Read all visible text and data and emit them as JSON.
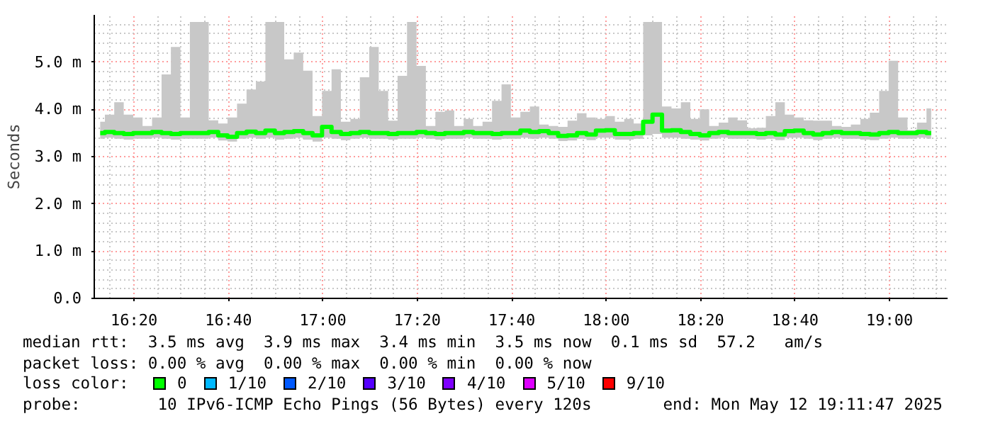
{
  "chart_data": {
    "type": "step",
    "ylabel": "Seconds",
    "x": [
      16.214,
      16.247,
      16.28,
      16.314,
      16.347,
      16.38,
      16.414,
      16.447,
      16.48,
      16.514,
      16.547,
      16.58,
      16.614,
      16.647,
      16.68,
      16.714,
      16.747,
      16.78,
      16.814,
      16.847,
      16.88,
      16.914,
      16.947,
      16.98,
      17.014,
      17.047,
      17.08,
      17.114,
      17.147,
      17.18,
      17.214,
      17.247,
      17.28,
      17.314,
      17.347,
      17.38,
      17.414,
      17.447,
      17.48,
      17.514,
      17.547,
      17.58,
      17.614,
      17.647,
      17.68,
      17.714,
      17.747,
      17.78,
      17.814,
      17.847,
      17.88,
      17.914,
      17.947,
      17.98,
      18.014,
      18.047,
      18.08,
      18.114,
      18.147,
      18.18,
      18.214,
      18.247,
      18.28,
      18.314,
      18.347,
      18.38,
      18.414,
      18.447,
      18.48,
      18.514,
      18.547,
      18.58,
      18.614,
      18.647,
      18.68,
      18.714,
      18.747,
      18.78,
      18.814,
      18.847,
      18.88,
      18.914,
      18.947,
      18.98,
      19.014,
      19.047,
      19.08,
      19.114,
      19.147
    ],
    "series": [
      {
        "name": "0",
        "color": "#00ff00",
        "values": [
          3.5,
          3.52,
          3.5,
          3.48,
          3.5,
          3.5,
          3.52,
          3.5,
          3.48,
          3.5,
          3.5,
          3.5,
          3.52,
          3.45,
          3.42,
          3.5,
          3.53,
          3.5,
          3.55,
          3.5,
          3.52,
          3.54,
          3.5,
          3.45,
          3.63,
          3.52,
          3.48,
          3.5,
          3.52,
          3.5,
          3.5,
          3.48,
          3.5,
          3.5,
          3.52,
          3.5,
          3.48,
          3.5,
          3.5,
          3.52,
          3.5,
          3.5,
          3.48,
          3.5,
          3.5,
          3.55,
          3.52,
          3.54,
          3.5,
          3.44,
          3.45,
          3.5,
          3.47,
          3.55,
          3.56,
          3.48,
          3.48,
          3.5,
          3.74,
          3.89,
          3.55,
          3.56,
          3.52,
          3.48,
          3.45,
          3.5,
          3.52,
          3.5,
          3.5,
          3.5,
          3.48,
          3.5,
          3.47,
          3.54,
          3.55,
          3.5,
          3.47,
          3.5,
          3.52,
          3.5,
          3.5,
          3.48,
          3.47,
          3.5,
          3.52,
          3.5,
          3.5,
          3.52,
          3.5
        ],
        "lower": [
          3.38,
          3.4,
          3.38,
          3.36,
          3.38,
          3.38,
          3.4,
          3.38,
          3.36,
          3.38,
          3.38,
          3.38,
          3.4,
          3.34,
          3.32,
          3.38,
          3.4,
          3.38,
          3.4,
          3.36,
          3.38,
          3.4,
          3.36,
          3.32,
          3.4,
          3.38,
          3.35,
          3.38,
          3.4,
          3.38,
          3.38,
          3.36,
          3.38,
          3.38,
          3.4,
          3.38,
          3.36,
          3.38,
          3.38,
          3.4,
          3.38,
          3.38,
          3.36,
          3.38,
          3.38,
          3.4,
          3.38,
          3.4,
          3.38,
          3.33,
          3.34,
          3.38,
          3.35,
          3.4,
          3.4,
          3.36,
          3.36,
          3.38,
          3.45,
          3.48,
          3.4,
          3.4,
          3.38,
          3.36,
          3.34,
          3.38,
          3.4,
          3.38,
          3.38,
          3.38,
          3.36,
          3.38,
          3.35,
          3.4,
          3.4,
          3.38,
          3.35,
          3.38,
          3.4,
          3.38,
          3.38,
          3.36,
          3.35,
          3.38,
          3.4,
          3.38,
          3.38,
          3.4,
          3.38
        ],
        "upper": [
          3.74,
          3.89,
          4.15,
          3.89,
          3.83,
          3.65,
          3.83,
          4.74,
          5.32,
          3.83,
          5.85,
          5.85,
          3.77,
          3.7,
          3.83,
          4.12,
          4.42,
          4.59,
          5.85,
          5.85,
          5.06,
          5.2,
          4.82,
          3.86,
          4.39,
          4.85,
          3.74,
          3.8,
          4.68,
          5.32,
          4.39,
          3.76,
          4.71,
          5.85,
          4.92,
          3.65,
          3.95,
          3.98,
          3.65,
          3.8,
          3.65,
          3.74,
          4.18,
          4.53,
          3.83,
          3.95,
          4.06,
          3.68,
          3.65,
          3.63,
          3.76,
          3.92,
          3.83,
          3.8,
          3.86,
          3.74,
          3.8,
          3.7,
          5.85,
          5.85,
          4.06,
          4.02,
          4.15,
          3.8,
          4.0,
          3.65,
          3.72,
          3.83,
          3.77,
          3.6,
          3.61,
          3.86,
          4.15,
          3.89,
          3.83,
          3.77,
          3.76,
          3.76,
          3.65,
          3.63,
          3.68,
          3.8,
          3.93,
          4.39,
          5.03,
          3.83,
          3.56,
          3.72,
          4.02
        ]
      },
      {
        "name": "1/10",
        "color": "#00b8ff",
        "values": [
          null,
          null,
          null,
          null,
          null,
          null,
          null,
          null,
          null,
          null,
          null,
          null,
          null,
          null,
          null,
          null,
          null,
          null,
          null,
          null,
          null,
          null,
          null,
          null,
          null,
          null,
          null,
          null,
          null,
          null,
          null,
          null,
          null,
          null,
          null,
          null,
          null,
          null,
          null,
          null,
          null,
          null,
          null,
          null,
          null,
          null,
          null,
          null,
          null,
          null,
          null,
          null,
          null,
          null,
          null,
          null,
          null,
          null,
          null,
          null,
          null,
          null,
          null,
          null,
          null,
          null,
          null,
          null,
          null,
          null,
          null,
          null,
          null,
          null,
          null,
          null,
          null,
          null,
          null,
          null,
          null,
          null,
          null,
          null,
          null,
          null,
          null,
          null,
          null
        ]
      },
      {
        "name": "2/10",
        "color": "#0059ff",
        "values": [
          null,
          null,
          null,
          null,
          null,
          null,
          null,
          null,
          null,
          null,
          null,
          null,
          null,
          null,
          null,
          null,
          null,
          null,
          null,
          null,
          null,
          null,
          null,
          null,
          null,
          null,
          null,
          null,
          null,
          null,
          null,
          null,
          null,
          null,
          null,
          null,
          null,
          null,
          null,
          null,
          null,
          null,
          null,
          null,
          null,
          null,
          null,
          null,
          null,
          null,
          null,
          null,
          null,
          null,
          null,
          null,
          null,
          null,
          null,
          null,
          null,
          null,
          null,
          null,
          null,
          null,
          null,
          null,
          null,
          null,
          null,
          null,
          null,
          null,
          null,
          null,
          null,
          null,
          null,
          null,
          null,
          null,
          null,
          null,
          null,
          null,
          null,
          null,
          null
        ]
      },
      {
        "name": "3/10",
        "color": "#5500ff",
        "values": [
          null,
          null,
          null,
          null,
          null,
          null,
          null,
          null,
          null,
          null,
          null,
          null,
          null,
          null,
          null,
          null,
          null,
          null,
          null,
          null,
          null,
          null,
          null,
          null,
          null,
          null,
          null,
          null,
          null,
          null,
          null,
          null,
          null,
          null,
          null,
          null,
          null,
          null,
          null,
          null,
          null,
          null,
          null,
          null,
          null,
          null,
          null,
          null,
          null,
          null,
          null,
          null,
          null,
          null,
          null,
          null,
          null,
          null,
          null,
          null,
          null,
          null,
          null,
          null,
          null,
          null,
          null,
          null,
          null,
          null,
          null,
          null,
          null,
          null,
          null,
          null,
          null,
          null,
          null,
          null,
          null,
          null,
          null,
          null,
          null,
          null,
          null,
          null,
          null
        ]
      },
      {
        "name": "4/10",
        "color": "#7e00ff",
        "values": [
          null,
          null,
          null,
          null,
          null,
          null,
          null,
          null,
          null,
          null,
          null,
          null,
          null,
          null,
          null,
          null,
          null,
          null,
          null,
          null,
          null,
          null,
          null,
          null,
          null,
          null,
          null,
          null,
          null,
          null,
          null,
          null,
          null,
          null,
          null,
          null,
          null,
          null,
          null,
          null,
          null,
          null,
          null,
          null,
          null,
          null,
          null,
          null,
          null,
          null,
          null,
          null,
          null,
          null,
          null,
          null,
          null,
          null,
          null,
          null,
          null,
          null,
          null,
          null,
          null,
          null,
          null,
          null,
          null,
          null,
          null,
          null,
          null,
          null,
          null,
          null,
          null,
          null,
          null,
          null,
          null,
          null,
          null,
          null,
          null,
          null,
          null,
          null,
          null
        ]
      },
      {
        "name": "5/10",
        "color": "#dd00ff",
        "values": [
          null,
          null,
          null,
          null,
          null,
          null,
          null,
          null,
          null,
          null,
          null,
          null,
          null,
          null,
          null,
          null,
          null,
          null,
          null,
          null,
          null,
          null,
          null,
          null,
          null,
          null,
          null,
          null,
          null,
          null,
          null,
          null,
          null,
          null,
          null,
          null,
          null,
          null,
          null,
          null,
          null,
          null,
          null,
          null,
          null,
          null,
          null,
          null,
          null,
          null,
          null,
          null,
          null,
          null,
          null,
          null,
          null,
          null,
          null,
          null,
          null,
          null,
          null,
          null,
          null,
          null,
          null,
          null,
          null,
          null,
          null,
          null,
          null,
          null,
          null,
          null,
          null,
          null,
          null,
          null,
          null,
          null,
          null,
          null,
          null,
          null,
          null,
          null,
          null
        ]
      },
      {
        "name": "9/10",
        "color": "#ff0000",
        "values": [
          null,
          null,
          null,
          null,
          null,
          null,
          null,
          null,
          null,
          null,
          null,
          null,
          null,
          null,
          null,
          null,
          null,
          null,
          null,
          null,
          null,
          null,
          null,
          null,
          null,
          null,
          null,
          null,
          null,
          null,
          null,
          null,
          null,
          null,
          null,
          null,
          null,
          null,
          null,
          null,
          null,
          null,
          null,
          null,
          null,
          null,
          null,
          null,
          null,
          null,
          null,
          null,
          null,
          null,
          null,
          null,
          null,
          null,
          null,
          null,
          null,
          null,
          null,
          null,
          null,
          null,
          null,
          null,
          null,
          null,
          null,
          null,
          null,
          null,
          null,
          null,
          null,
          null,
          null,
          null,
          null,
          null,
          null,
          null,
          null,
          null,
          null,
          null,
          null
        ]
      }
    ],
    "xlim": [
      16.193,
      19.205
    ],
    "xticks": [
      {
        "value": 16.25,
        "label": null
      },
      {
        "value": 16.3333,
        "label": "16:20"
      },
      {
        "value": 16.4167,
        "label": null
      },
      {
        "value": 16.5,
        "label": null
      },
      {
        "value": 16.5833,
        "label": null
      },
      {
        "value": 16.6667,
        "label": "16:40"
      },
      {
        "value": 16.75,
        "label": null
      },
      {
        "value": 16.8333,
        "label": null
      },
      {
        "value": 16.9167,
        "label": null
      },
      {
        "value": 17,
        "label": "17:00"
      },
      {
        "value": 17.0833,
        "label": null
      },
      {
        "value": 17.1667,
        "label": null
      },
      {
        "value": 17.25,
        "label": null
      },
      {
        "value": 17.3333,
        "label": "17:20"
      },
      {
        "value": 17.4167,
        "label": null
      },
      {
        "value": 17.5,
        "label": null
      },
      {
        "value": 17.5833,
        "label": null
      },
      {
        "value": 17.6667,
        "label": "17:40"
      },
      {
        "value": 17.75,
        "label": null
      },
      {
        "value": 17.8333,
        "label": null
      },
      {
        "value": 17.9167,
        "label": null
      },
      {
        "value": 18,
        "label": "18:00"
      },
      {
        "value": 18.0833,
        "label": null
      },
      {
        "value": 18.1667,
        "label": null
      },
      {
        "value": 18.25,
        "label": null
      },
      {
        "value": 18.3333,
        "label": "18:20"
      },
      {
        "value": 18.4167,
        "label": null
      },
      {
        "value": 18.5,
        "label": null
      },
      {
        "value": 18.5833,
        "label": null
      },
      {
        "value": 18.6667,
        "label": "18:40"
      },
      {
        "value": 18.75,
        "label": null
      },
      {
        "value": 18.8333,
        "label": null
      },
      {
        "value": 18.9167,
        "label": null
      },
      {
        "value": 19,
        "label": "19:00"
      },
      {
        "value": 19.0833,
        "label": null
      },
      {
        "value": 19.1667,
        "label": null
      }
    ],
    "ylim": [
      0,
      6
    ],
    "yticks": [
      {
        "value": 0,
        "label": "0.0"
      },
      {
        "value": 0.2,
        "label": null
      },
      {
        "value": 0.4,
        "label": null
      },
      {
        "value": 0.6,
        "label": null
      },
      {
        "value": 0.8,
        "label": null
      },
      {
        "value": 1,
        "label": "1.0 m"
      },
      {
        "value": 1.2,
        "label": null
      },
      {
        "value": 1.4,
        "label": null
      },
      {
        "value": 1.6,
        "label": null
      },
      {
        "value": 1.8,
        "label": null
      },
      {
        "value": 2,
        "label": "2.0 m"
      },
      {
        "value": 2.2,
        "label": null
      },
      {
        "value": 2.4,
        "label": null
      },
      {
        "value": 2.6,
        "label": null
      },
      {
        "value": 2.8,
        "label": null
      },
      {
        "value": 3,
        "label": "3.0 m"
      },
      {
        "value": 3.2,
        "label": null
      },
      {
        "value": 3.4,
        "label": null
      },
      {
        "value": 3.6,
        "label": null
      },
      {
        "value": 3.8,
        "label": null
      },
      {
        "value": 4,
        "label": "4.0 m"
      },
      {
        "value": 4.2,
        "label": null
      },
      {
        "value": 4.4,
        "label": null
      },
      {
        "value": 4.6,
        "label": null
      },
      {
        "value": 4.8,
        "label": null
      },
      {
        "value": 5,
        "label": "5.0 m"
      },
      {
        "value": 5.2,
        "label": null
      },
      {
        "value": 5.4,
        "label": null
      },
      {
        "value": 5.6,
        "label": null
      },
      {
        "value": 5.8,
        "label": null
      }
    ],
    "grid": true,
    "legend": "bottom",
    "legend_title": "loss color:",
    "annotations": [
      "median rtt:  3.5 ms avg  3.9 ms max  3.4 ms min  3.5 ms now  0.1 ms sd  57.2   am/s",
      "packet loss: 0.00 % avg  0.00 % max  0.00 % min  0.00 % now",
      "probe:        10 IPv6-ICMP Echo Pings (56 Bytes) every 120s",
      "end: Mon May 12 19:11:47 2025"
    ]
  }
}
